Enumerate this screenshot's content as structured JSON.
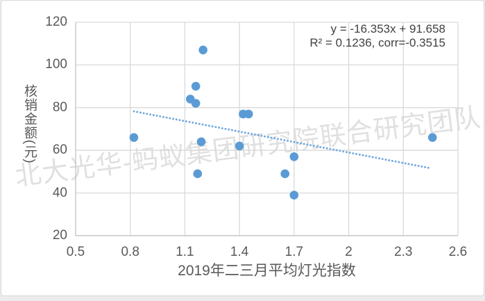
{
  "watermark": {
    "text": "北大光华-蚂蚁集团研究院联合研究团队"
  },
  "chart_data": {
    "type": "scatter",
    "title": "",
    "xlabel": "2019年二三月平均灯光指数",
    "ylabel": "核销金额(元)",
    "equation_line1": "y = -16.353x + 91.658",
    "equation_line2": "R² = 0.1236, corr=-0.3515",
    "xlim": [
      0.5,
      2.6
    ],
    "ylim": [
      20,
      120
    ],
    "x_tick_labels": [
      "0.5",
      "0.8",
      "1.1",
      "1.4",
      "1.7",
      "2",
      "2.3",
      "2.6"
    ],
    "x_tick_values": [
      0.5,
      0.8,
      1.1,
      1.4,
      1.7,
      2,
      2.3,
      2.6
    ],
    "y_tick_labels": [
      "20",
      "40",
      "60",
      "80",
      "100",
      "120"
    ],
    "y_tick_values": [
      20,
      40,
      60,
      80,
      100,
      120
    ],
    "grid": true,
    "legend": "none",
    "points": [
      {
        "x": 0.82,
        "y": 66
      },
      {
        "x": 1.2,
        "y": 107
      },
      {
        "x": 1.16,
        "y": 90
      },
      {
        "x": 1.13,
        "y": 84
      },
      {
        "x": 1.16,
        "y": 82
      },
      {
        "x": 1.42,
        "y": 77
      },
      {
        "x": 1.45,
        "y": 77
      },
      {
        "x": 1.19,
        "y": 64
      },
      {
        "x": 1.4,
        "y": 62
      },
      {
        "x": 1.17,
        "y": 49
      },
      {
        "x": 1.7,
        "y": 57
      },
      {
        "x": 1.65,
        "y": 49
      },
      {
        "x": 1.7,
        "y": 39
      },
      {
        "x": 2.46,
        "y": 66
      }
    ],
    "trendline": {
      "slope": -16.353,
      "intercept": 91.658,
      "x_start": 0.82,
      "x_end": 2.45,
      "style": "dotted"
    },
    "colors": {
      "marker": "#5b9bd5",
      "trendline": "#6fa8dc",
      "gridline": "#d9d9d9",
      "axis_line": "#c6c6c6",
      "tick_label": "#595959",
      "axis_title": "#595959",
      "equation_text": "#404040",
      "watermark": "#c3c3c3",
      "background": "#ffffff"
    }
  }
}
